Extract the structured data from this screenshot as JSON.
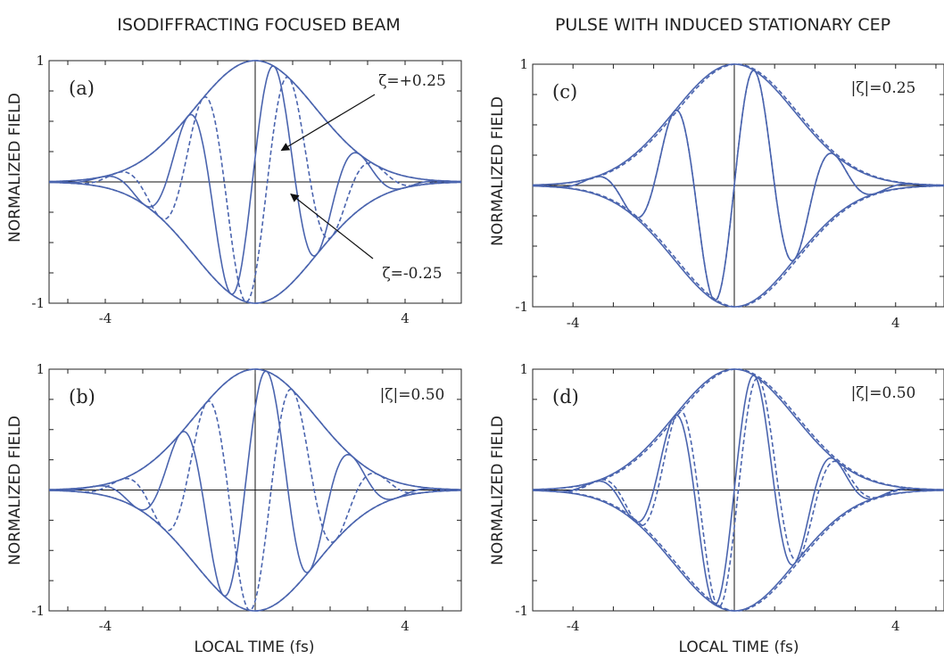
{
  "figure": {
    "left_title": "ISODIFFRACTING FOCUSED BEAM",
    "right_title": "PULSE WITH INDUCED STATIONARY CEP",
    "ylabel": "NORMALIZED FIELD",
    "xlabel": "LOCAL TIME (fs)",
    "line_color": "#4a64ae"
  },
  "chart_data": [
    {
      "panel": "(a)",
      "type": "line",
      "xlabel": "",
      "ylabel": "NORMALIZED FIELD",
      "xlim": [
        -5.5,
        5.5
      ],
      "ylim": [
        -1,
        1
      ],
      "x_ticks": [
        -4,
        4
      ],
      "y_ticks": [
        1,
        -1
      ],
      "annotations": [
        "ζ=+0.25",
        "ζ=-0.25"
      ],
      "series": [
        {
          "style": "solid",
          "envelope": "gaussian",
          "carrier_period_fs": 2.3,
          "carrier_peak_fs": 0.5,
          "shape": "envelope-with-carrier"
        },
        {
          "style": "dashed",
          "envelope": "gaussian",
          "carrier_period_fs": 2.3,
          "carrier_peak_fs": 0.9,
          "shape": "envelope-with-carrier"
        }
      ]
    },
    {
      "panel": "(c)",
      "type": "line",
      "xlabel": "",
      "ylabel": "NORMALIZED FIELD",
      "xlim": [
        -5.0,
        5.2
      ],
      "ylim": [
        -1,
        1
      ],
      "x_ticks": [
        -4,
        4
      ],
      "y_ticks": [
        1,
        -1
      ],
      "annotations": [
        "|ζ|=0.25"
      ],
      "series": [
        {
          "style": "solid",
          "envelope": "gaussian",
          "carrier_period_fs": 2.0,
          "carrier_peak_fs": 0.5,
          "shape": "envelope-with-carrier"
        },
        {
          "style": "dashed",
          "envelope": "gaussian",
          "carrier_period_fs": 2.0,
          "carrier_peak_fs": 0.5,
          "shape": "envelope-with-carrier"
        }
      ]
    },
    {
      "panel": "(b)",
      "type": "line",
      "xlabel": "LOCAL TIME (fs)",
      "ylabel": "NORMALIZED FIELD",
      "xlim": [
        -5.5,
        5.5
      ],
      "ylim": [
        -1,
        1
      ],
      "x_ticks": [
        -4,
        4
      ],
      "y_ticks": [
        1,
        -1
      ],
      "annotations": [
        "|ζ|=0.50"
      ],
      "series": [
        {
          "style": "solid",
          "envelope": "gaussian",
          "carrier_period_fs": 2.3,
          "carrier_peak_fs": 0.3,
          "shape": "envelope-with-carrier"
        },
        {
          "style": "dashed",
          "envelope": "gaussian",
          "carrier_period_fs": 2.3,
          "carrier_peak_fs": 1.0,
          "shape": "envelope-with-carrier"
        }
      ]
    },
    {
      "panel": "(d)",
      "type": "line",
      "xlabel": "LOCAL TIME (fs)",
      "ylabel": "NORMALIZED FIELD",
      "xlim": [
        -5.0,
        5.2
      ],
      "ylim": [
        -1,
        1
      ],
      "x_ticks": [
        -4,
        4
      ],
      "y_ticks": [
        1,
        -1
      ],
      "annotations": [
        "|ζ|=0.50"
      ],
      "series": [
        {
          "style": "solid",
          "envelope": "gaussian",
          "carrier_period_fs": 2.0,
          "carrier_peak_fs": 0.5,
          "shape": "envelope-with-carrier"
        },
        {
          "style": "dashed",
          "envelope": "gaussian",
          "carrier_period_fs": 2.0,
          "carrier_peak_fs": 0.6,
          "shape": "envelope-with-carrier"
        }
      ]
    }
  ]
}
